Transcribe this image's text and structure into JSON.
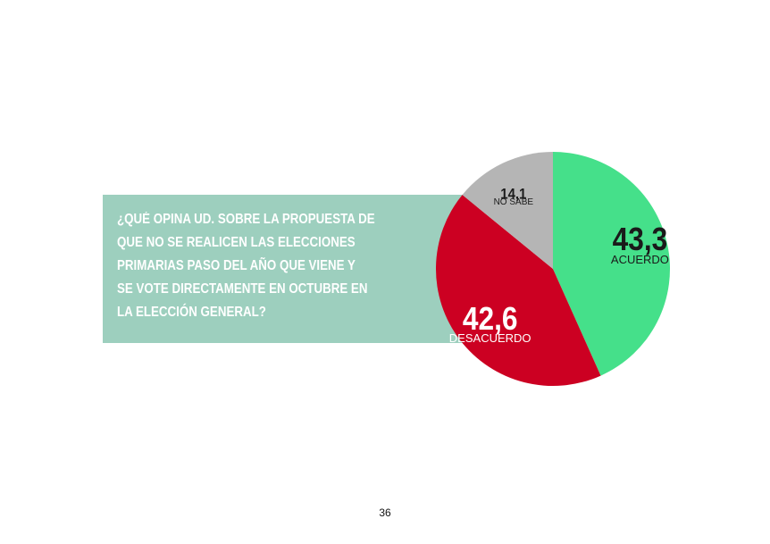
{
  "question": {
    "lines": [
      "¿QUÉ OPINA UD. SOBRE LA PROPUESTA DE",
      "QUE NO SE REALICEN LAS ELECCIONES",
      "PRIMARIAS PASO DEL AÑO QUE VIENE Y",
      "SE VOTE DIRECTAMENTE EN OCTUBRE EN",
      "LA ELECCIÓN GENERAL?"
    ]
  },
  "chart_data": {
    "type": "pie",
    "title": "",
    "slices": [
      {
        "label": "ACUERDO",
        "value": 43.3,
        "display": "43,3",
        "color": "#45e08a",
        "value_color": "#1a1a1a",
        "label_color": "#1a1a1a"
      },
      {
        "label": "DESACUERDO",
        "value": 42.6,
        "display": "42,6",
        "color": "#cc0022",
        "value_color": "#ffffff",
        "label_color": "#ffffff"
      },
      {
        "label": "NO SABE",
        "value": 14.1,
        "display": "14,1",
        "color": "#b5b5b5",
        "value_color": "#1a1a1a",
        "label_color": "#1a1a1a"
      }
    ],
    "start_angle_deg": 0,
    "direction": "clockwise"
  },
  "footer": {
    "page_number": "36"
  }
}
